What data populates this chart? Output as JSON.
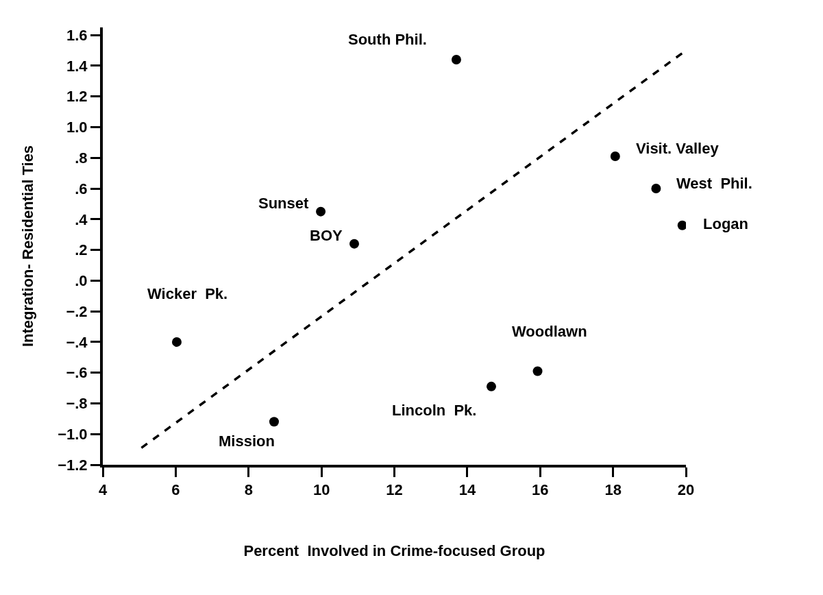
{
  "chart_data": {
    "type": "scatter",
    "xlabel": "Percent  Involved in Crime-focused Group",
    "ylabel": "Integration- Residential Ties",
    "xlim": [
      4,
      20
    ],
    "ylim": [
      -1.2,
      1.65
    ],
    "xticks": [
      4,
      6,
      8,
      10,
      12,
      14,
      16,
      18,
      20
    ],
    "yticks": [
      {
        "value": -1.2,
        "label": "−1.2"
      },
      {
        "value": -1.0,
        "label": "−1.0"
      },
      {
        "value": -0.8,
        "label": "−.8"
      },
      {
        "value": -0.6,
        "label": "−.6"
      },
      {
        "value": -0.4,
        "label": "−.4"
      },
      {
        "value": -0.2,
        "label": "−.2"
      },
      {
        "value": 0,
        "label": ".0"
      },
      {
        "value": 0.2,
        "label": ".2"
      },
      {
        "value": 0.4,
        "label": ".4"
      },
      {
        "value": 0.6,
        "label": ".6"
      },
      {
        "value": 0.8,
        "label": ".8"
      },
      {
        "value": 1.0,
        "label": "1.0"
      },
      {
        "value": 1.2,
        "label": "1.2"
      },
      {
        "value": 1.4,
        "label": "1.4"
      },
      {
        "value": 1.6,
        "label": "1.6"
      }
    ],
    "series": [
      {
        "color": "#000000",
        "marker": "circle",
        "x": [
          13.7,
          18.06,
          19.18,
          19.9,
          9.98,
          10.9,
          6.03,
          8.7,
          14.66,
          15.93
        ],
        "values": [
          1.44,
          0.81,
          0.6,
          0.36,
          0.45,
          0.24,
          -0.4,
          -0.92,
          -0.69,
          -0.59
        ]
      },
      {
        "type": "line",
        "color": "#000000",
        "marker": "none",
        "line_style": "dashed",
        "x": [
          5.06,
          20.0
        ],
        "values": [
          -1.09,
          1.5
        ]
      }
    ],
    "annotations": [
      {
        "text": "South Phil.",
        "x": 13.7,
        "y": 1.44
      },
      {
        "text": "Visit. Valley",
        "x": 18.06,
        "y": 0.81
      },
      {
        "text": "West  Phil.",
        "x": 19.18,
        "y": 0.6
      },
      {
        "text": "Logan",
        "x": 19.9,
        "y": 0.36
      },
      {
        "text": "Sunset",
        "x": 9.98,
        "y": 0.45
      },
      {
        "text": "BOY",
        "x": 10.9,
        "y": 0.24
      },
      {
        "text": "Wicker  Pk.",
        "x": 6.03,
        "y": -0.4
      },
      {
        "text": "Mission",
        "x": 8.7,
        "y": -0.92
      },
      {
        "text": "Lincoln  Pk.",
        "x": 14.66,
        "y": -0.69
      },
      {
        "text": "Woodlawn",
        "x": 15.93,
        "y": -0.59
      }
    ]
  }
}
